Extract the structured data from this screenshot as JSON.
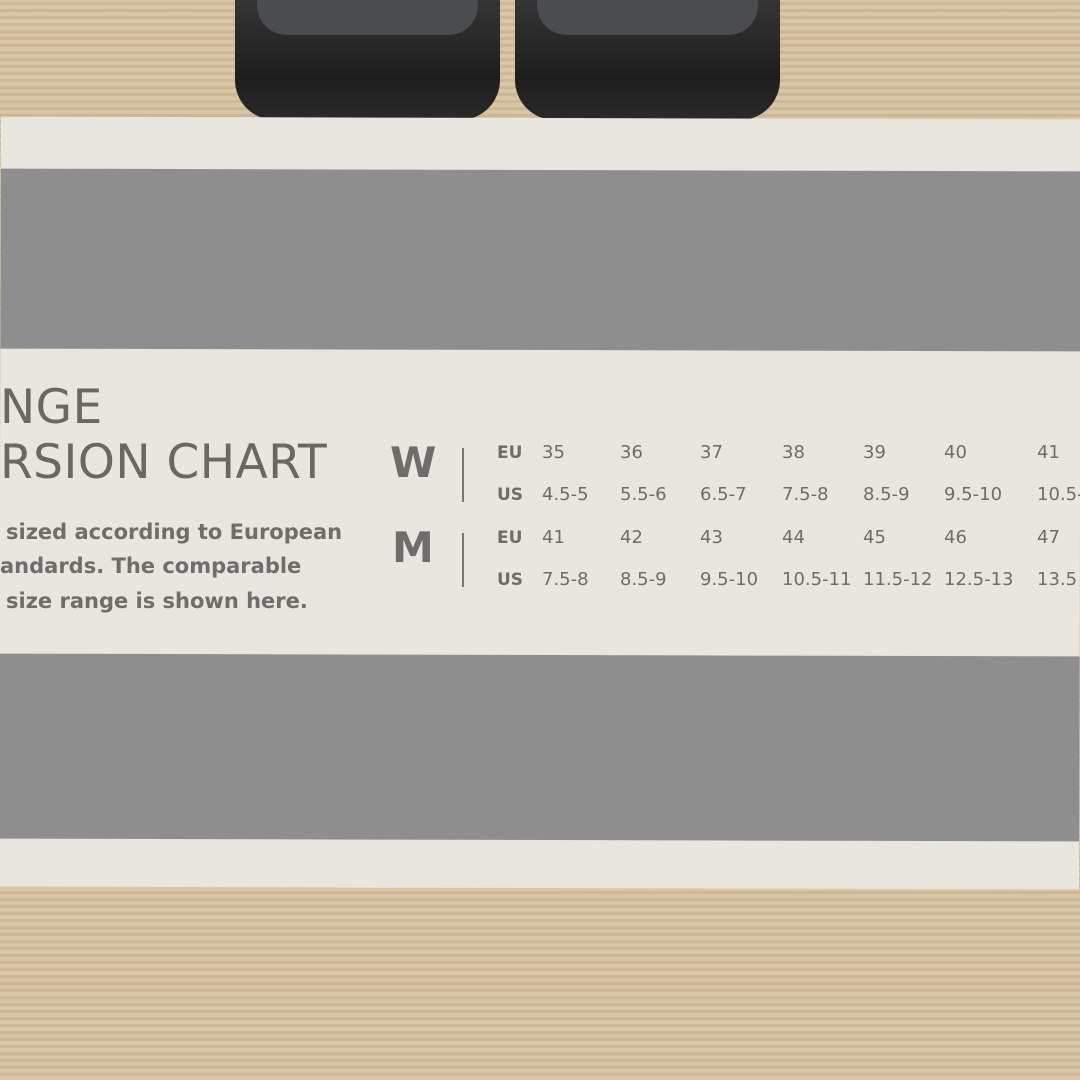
{
  "title": {
    "line1": "NGE",
    "line2": "RSION CHART"
  },
  "description": [
    "sized according to European",
    "andards.  The comparable",
    "size range is shown here."
  ],
  "chart": {
    "groups": [
      {
        "label": "W",
        "rows": [
          {
            "label": "EU",
            "values": [
              "35",
              "36",
              "37",
              "38",
              "39",
              "40",
              "41"
            ]
          },
          {
            "label": "US",
            "values": [
              "4.5-5",
              "5.5-6",
              "6.5-7",
              "7.5-8",
              "8.5-9",
              "9.5-10",
              "10.5-"
            ]
          }
        ]
      },
      {
        "label": "M",
        "rows": [
          {
            "label": "EU",
            "values": [
              "41",
              "42",
              "43",
              "44",
              "45",
              "46",
              "47"
            ]
          },
          {
            "label": "US",
            "values": [
              "7.5-8",
              "8.5-9",
              "9.5-10",
              "10.5-11",
              "11.5-12",
              "12.5-13",
              "13.5"
            ]
          }
        ]
      }
    ]
  },
  "colors": {
    "band": "#8e8e8e",
    "panel": "#e9e6e0",
    "text": "#6a6764",
    "cardboard": "#d9c6a6"
  }
}
